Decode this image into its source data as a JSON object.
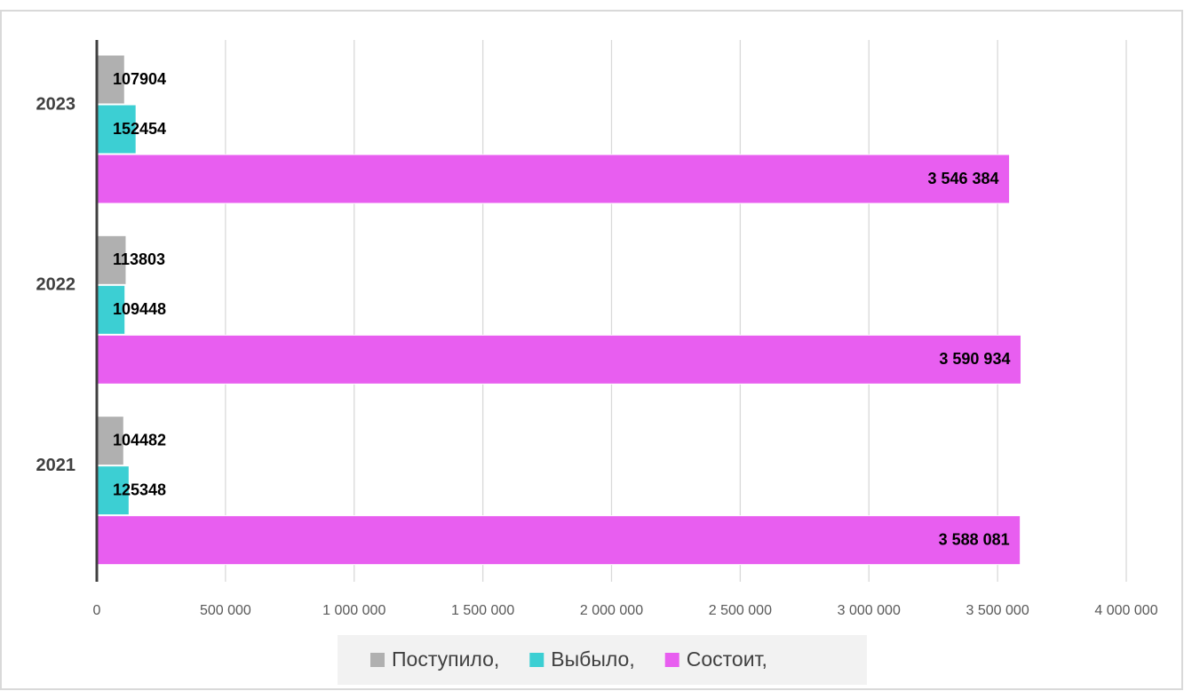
{
  "chart_data": {
    "type": "bar",
    "orientation": "horizontal",
    "categories": [
      "2021",
      "2022",
      "2023"
    ],
    "series": [
      {
        "name": "Поступило,",
        "color": "#b0b0b0",
        "values": [
          104482,
          113803,
          107904
        ]
      },
      {
        "name": "Выбыло,",
        "color": "#3ccfd3",
        "values": [
          125348,
          109448,
          152454
        ]
      },
      {
        "name": "Состоит,",
        "color": "#e85ef0",
        "values": [
          3588081,
          3590934,
          3546384
        ],
        "value_labels": [
          "3 588 081",
          "3 590 934",
          "3 546 384"
        ]
      }
    ],
    "xlim": [
      0,
      4000000
    ],
    "xticks": [
      0,
      {
        "value": 500000,
        "label": "500 000"
      },
      {
        "value": 1000000,
        "label": "1 000 000"
      },
      {
        "value": 1500000,
        "label": "1 500 000"
      },
      {
        "value": 2000000,
        "label": "2 000 000"
      },
      {
        "value": 2500000,
        "label": "2 500 000"
      },
      {
        "value": 3000000,
        "label": "3 000 000"
      },
      {
        "value": 3500000,
        "label": "3 500 000"
      },
      {
        "value": 4000000,
        "label": "4 000 000"
      }
    ],
    "grid": true,
    "legend": "bottom"
  }
}
